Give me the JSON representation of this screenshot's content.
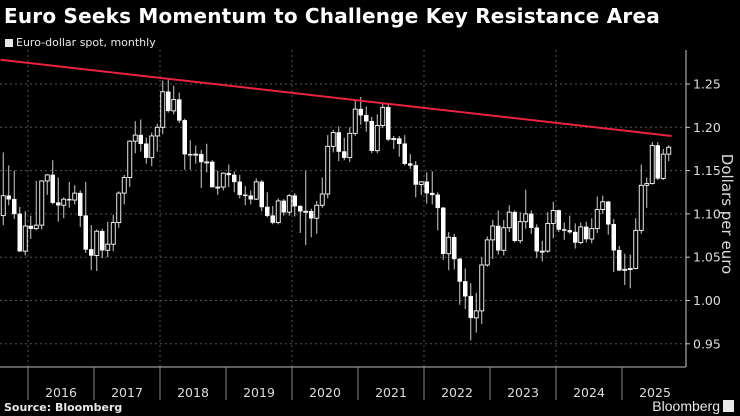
{
  "title": "Euro Seeks Momentum to Challenge Key Resistance Area",
  "source": "Source: Bloomberg",
  "logo_text": "Bloomberg",
  "chart_data": {
    "type": "candlestick",
    "title": "Euro Seeks Momentum to Challenge Key Resistance Area",
    "legend": [
      {
        "name": "Euro-dollar spot, monthly",
        "color": "#e8e8e8"
      }
    ],
    "ylabel": "Dollars per euro",
    "ylim": [
      0.93,
      1.29
    ],
    "yticks": [
      "0.95",
      "1.00",
      "1.05",
      "1.10",
      "1.15",
      "1.20",
      "1.25"
    ],
    "xticks": [
      "2016",
      "2017",
      "2018",
      "2019",
      "2020",
      "2021",
      "2022",
      "2023",
      "2024",
      "2025"
    ],
    "grid": true,
    "colors": {
      "candle": "#ffffff",
      "trendline": "#e8233f",
      "grid": "#555555"
    },
    "trendline": {
      "points": [
        [
          "2015-08",
          1.278
        ],
        [
          "2025-10",
          1.19
        ]
      ]
    },
    "candles_fields": [
      "month",
      "open",
      "high",
      "low",
      "close"
    ],
    "candles": [
      [
        "2015-08",
        1.098,
        1.171,
        1.087,
        1.121
      ],
      [
        "2015-09",
        1.121,
        1.156,
        1.11,
        1.117
      ],
      [
        "2015-10",
        1.117,
        1.15,
        1.094,
        1.1
      ],
      [
        "2015-11",
        1.1,
        1.108,
        1.056,
        1.057
      ],
      [
        "2015-12",
        1.057,
        1.103,
        1.052,
        1.086
      ],
      [
        "2016-01",
        1.086,
        1.098,
        1.071,
        1.083
      ],
      [
        "2016-02",
        1.083,
        1.138,
        1.081,
        1.087
      ],
      [
        "2016-03",
        1.087,
        1.139,
        1.082,
        1.138
      ],
      [
        "2016-04",
        1.138,
        1.146,
        1.122,
        1.145
      ],
      [
        "2016-05",
        1.145,
        1.162,
        1.111,
        1.113
      ],
      [
        "2016-06",
        1.113,
        1.142,
        1.091,
        1.11
      ],
      [
        "2016-07",
        1.11,
        1.119,
        1.095,
        1.117
      ],
      [
        "2016-08",
        1.117,
        1.137,
        1.107,
        1.116
      ],
      [
        "2016-09",
        1.116,
        1.133,
        1.111,
        1.124
      ],
      [
        "2016-10",
        1.124,
        1.127,
        1.085,
        1.098
      ],
      [
        "2016-11",
        1.098,
        1.137,
        1.055,
        1.059
      ],
      [
        "2016-12",
        1.059,
        1.087,
        1.035,
        1.052
      ],
      [
        "2017-01",
        1.052,
        1.082,
        1.034,
        1.08
      ],
      [
        "2017-02",
        1.08,
        1.083,
        1.049,
        1.058
      ],
      [
        "2017-03",
        1.058,
        1.091,
        1.05,
        1.065
      ],
      [
        "2017-04",
        1.065,
        1.099,
        1.057,
        1.09
      ],
      [
        "2017-05",
        1.09,
        1.126,
        1.084,
        1.124
      ],
      [
        "2017-06",
        1.124,
        1.145,
        1.111,
        1.142
      ],
      [
        "2017-07",
        1.142,
        1.185,
        1.131,
        1.184
      ],
      [
        "2017-08",
        1.184,
        1.207,
        1.17,
        1.191
      ],
      [
        "2017-09",
        1.191,
        1.209,
        1.172,
        1.181
      ],
      [
        "2017-10",
        1.181,
        1.188,
        1.158,
        1.165
      ],
      [
        "2017-11",
        1.165,
        1.194,
        1.155,
        1.19
      ],
      [
        "2017-12",
        1.19,
        1.204,
        1.172,
        1.2
      ],
      [
        "2018-01",
        1.2,
        1.254,
        1.192,
        1.241
      ],
      [
        "2018-02",
        1.241,
        1.256,
        1.217,
        1.219
      ],
      [
        "2018-03",
        1.219,
        1.248,
        1.215,
        1.232
      ],
      [
        "2018-04",
        1.232,
        1.24,
        1.205,
        1.208
      ],
      [
        "2018-05",
        1.208,
        1.21,
        1.151,
        1.169
      ],
      [
        "2018-06",
        1.169,
        1.185,
        1.151,
        1.168
      ],
      [
        "2018-07",
        1.168,
        1.179,
        1.158,
        1.169
      ],
      [
        "2018-08",
        1.169,
        1.174,
        1.13,
        1.16
      ],
      [
        "2018-09",
        1.16,
        1.181,
        1.148,
        1.16
      ],
      [
        "2018-10",
        1.16,
        1.162,
        1.132,
        1.131
      ],
      [
        "2018-11",
        1.131,
        1.15,
        1.122,
        1.131
      ],
      [
        "2018-12",
        1.131,
        1.148,
        1.127,
        1.147
      ],
      [
        "2019-01",
        1.147,
        1.157,
        1.131,
        1.145
      ],
      [
        "2019-02",
        1.145,
        1.149,
        1.125,
        1.137
      ],
      [
        "2019-03",
        1.137,
        1.145,
        1.118,
        1.122
      ],
      [
        "2019-04",
        1.122,
        1.132,
        1.11,
        1.121
      ],
      [
        "2019-05",
        1.121,
        1.127,
        1.111,
        1.117
      ],
      [
        "2019-06",
        1.117,
        1.141,
        1.116,
        1.137
      ],
      [
        "2019-07",
        1.137,
        1.139,
        1.103,
        1.108
      ],
      [
        "2019-08",
        1.108,
        1.125,
        1.096,
        1.098
      ],
      [
        "2019-09",
        1.098,
        1.109,
        1.088,
        1.09
      ],
      [
        "2019-10",
        1.09,
        1.118,
        1.088,
        1.115
      ],
      [
        "2019-11",
        1.115,
        1.117,
        1.098,
        1.102
      ],
      [
        "2019-12",
        1.102,
        1.123,
        1.098,
        1.121
      ],
      [
        "2020-01",
        1.121,
        1.124,
        1.097,
        1.109
      ],
      [
        "2020-02",
        1.109,
        1.11,
        1.078,
        1.103
      ],
      [
        "2020-03",
        1.103,
        1.15,
        1.064,
        1.103
      ],
      [
        "2020-04",
        1.103,
        1.106,
        1.073,
        1.095
      ],
      [
        "2020-05",
        1.095,
        1.115,
        1.077,
        1.11
      ],
      [
        "2020-06",
        1.11,
        1.142,
        1.107,
        1.123
      ],
      [
        "2020-07",
        1.123,
        1.191,
        1.118,
        1.178
      ],
      [
        "2020-08",
        1.178,
        1.197,
        1.171,
        1.194
      ],
      [
        "2020-09",
        1.194,
        1.201,
        1.161,
        1.172
      ],
      [
        "2020-10",
        1.172,
        1.188,
        1.162,
        1.165
      ],
      [
        "2020-11",
        1.165,
        1.2,
        1.16,
        1.193
      ],
      [
        "2020-12",
        1.193,
        1.231,
        1.19,
        1.221
      ],
      [
        "2021-01",
        1.221,
        1.235,
        1.203,
        1.214
      ],
      [
        "2021-02",
        1.214,
        1.224,
        1.195,
        1.207
      ],
      [
        "2021-03",
        1.207,
        1.212,
        1.17,
        1.173
      ],
      [
        "2021-04",
        1.173,
        1.215,
        1.17,
        1.202
      ],
      [
        "2021-05",
        1.202,
        1.227,
        1.199,
        1.223
      ],
      [
        "2021-06",
        1.223,
        1.228,
        1.184,
        1.186
      ],
      [
        "2021-07",
        1.186,
        1.19,
        1.175,
        1.187
      ],
      [
        "2021-08",
        1.187,
        1.19,
        1.166,
        1.181
      ],
      [
        "2021-09",
        1.181,
        1.191,
        1.156,
        1.158
      ],
      [
        "2021-10",
        1.158,
        1.169,
        1.152,
        1.156
      ],
      [
        "2021-11",
        1.156,
        1.161,
        1.119,
        1.134
      ],
      [
        "2021-12",
        1.134,
        1.138,
        1.122,
        1.137
      ],
      [
        "2022-01",
        1.137,
        1.148,
        1.112,
        1.124
      ],
      [
        "2022-02",
        1.124,
        1.149,
        1.111,
        1.122
      ],
      [
        "2022-03",
        1.122,
        1.125,
        1.081,
        1.107
      ],
      [
        "2022-04",
        1.107,
        1.108,
        1.047,
        1.054
      ],
      [
        "2022-05",
        1.054,
        1.079,
        1.035,
        1.073
      ],
      [
        "2022-06",
        1.073,
        1.077,
        1.036,
        1.048
      ],
      [
        "2022-07",
        1.048,
        1.049,
        0.995,
        1.022
      ],
      [
        "2022-08",
        1.022,
        1.037,
        0.99,
        1.005
      ],
      [
        "2022-09",
        1.005,
        1.02,
        0.954,
        0.98
      ],
      [
        "2022-10",
        0.98,
        1.009,
        0.963,
        0.988
      ],
      [
        "2022-11",
        0.988,
        1.05,
        0.973,
        1.041
      ],
      [
        "2022-12",
        1.041,
        1.074,
        1.039,
        1.07
      ],
      [
        "2023-01",
        1.07,
        1.093,
        1.048,
        1.086
      ],
      [
        "2023-02",
        1.086,
        1.104,
        1.053,
        1.058
      ],
      [
        "2023-03",
        1.058,
        1.093,
        1.052,
        1.084
      ],
      [
        "2023-04",
        1.084,
        1.11,
        1.079,
        1.102
      ],
      [
        "2023-05",
        1.102,
        1.104,
        1.067,
        1.069
      ],
      [
        "2023-06",
        1.069,
        1.102,
        1.066,
        1.091
      ],
      [
        "2023-07",
        1.091,
        1.128,
        1.083,
        1.1
      ],
      [
        "2023-08",
        1.1,
        1.104,
        1.077,
        1.084
      ],
      [
        "2023-09",
        1.084,
        1.088,
        1.049,
        1.057
      ],
      [
        "2023-10",
        1.057,
        1.069,
        1.045,
        1.057
      ],
      [
        "2023-11",
        1.057,
        1.102,
        1.055,
        1.089
      ],
      [
        "2023-12",
        1.089,
        1.114,
        1.072,
        1.104
      ],
      [
        "2024-01",
        1.104,
        1.105,
        1.079,
        1.082
      ],
      [
        "2024-02",
        1.082,
        1.09,
        1.07,
        1.081
      ],
      [
        "2024-03",
        1.081,
        1.098,
        1.077,
        1.079
      ],
      [
        "2024-04",
        1.079,
        1.089,
        1.06,
        1.067
      ],
      [
        "2024-05",
        1.067,
        1.09,
        1.065,
        1.085
      ],
      [
        "2024-06",
        1.085,
        1.091,
        1.067,
        1.071
      ],
      [
        "2024-07",
        1.071,
        1.095,
        1.066,
        1.083
      ],
      [
        "2024-08",
        1.083,
        1.12,
        1.078,
        1.105
      ],
      [
        "2024-09",
        1.105,
        1.121,
        1.1,
        1.114
      ],
      [
        "2024-10",
        1.114,
        1.115,
        1.076,
        1.088
      ],
      [
        "2024-11",
        1.088,
        1.094,
        1.033,
        1.058
      ],
      [
        "2024-12",
        1.058,
        1.063,
        1.034,
        1.035
      ],
      [
        "2025-01",
        1.035,
        1.054,
        1.018,
        1.036
      ],
      [
        "2025-02",
        1.036,
        1.053,
        1.014,
        1.037
      ],
      [
        "2025-03",
        1.037,
        1.095,
        1.036,
        1.081
      ],
      [
        "2025-04",
        1.081,
        1.157,
        1.077,
        1.133
      ],
      [
        "2025-05",
        1.133,
        1.142,
        1.107,
        1.135
      ],
      [
        "2025-06",
        1.135,
        1.183,
        1.134,
        1.179
      ],
      [
        "2025-07",
        1.179,
        1.183,
        1.139,
        1.141
      ],
      [
        "2025-08",
        1.141,
        1.175,
        1.139,
        1.169
      ],
      [
        "2025-09",
        1.169,
        1.179,
        1.161,
        1.177
      ]
    ]
  }
}
